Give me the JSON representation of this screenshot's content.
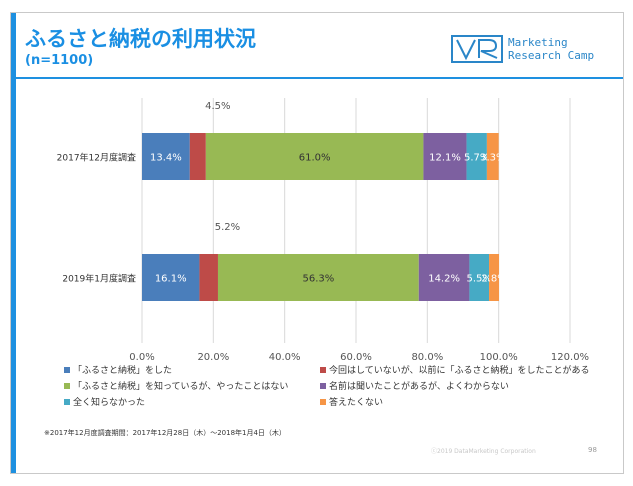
{
  "header": {
    "title": "ふるさと納税の利用状況",
    "subtitle": "(n=1100)"
  },
  "logo": {
    "mark": "VR",
    "line1": "Marketing",
    "line2": "Research Camp"
  },
  "chart_data": {
    "type": "bar",
    "orientation": "horizontal",
    "stacked": true,
    "categories": [
      "2017年12月度調査",
      "2019年1月度調査"
    ],
    "series": [
      {
        "name": "「ふるさと納税」をした",
        "color": "#4a7ebb",
        "values": [
          13.4,
          16.1
        ],
        "labels": [
          "13.4%",
          "16.1%"
        ]
      },
      {
        "name": "今回はしていないが、以前に「ふるさと納税」をしたことがある",
        "color": "#be4b48",
        "values": [
          4.5,
          5.2
        ],
        "labels": [
          "4.5%",
          "5.2%"
        ]
      },
      {
        "name": "「ふるさと納税」を知っているが、やったことはない",
        "color": "#98b954",
        "values": [
          61.0,
          56.3
        ],
        "labels": [
          "61.0%",
          "56.3%"
        ]
      },
      {
        "name": "名前は聞いたことがあるが、よくわからない",
        "color": "#7d60a0",
        "values": [
          12.1,
          14.2
        ],
        "labels": [
          "12.1%",
          "14.2%"
        ]
      },
      {
        "name": "全く知らなかった",
        "color": "#46aac5",
        "values": [
          5.7,
          5.5
        ],
        "labels": [
          "5.7%",
          "5.5%"
        ]
      },
      {
        "name": "答えたくない",
        "color": "#f69546",
        "values": [
          3.3,
          2.8
        ],
        "labels": [
          "3.3%",
          "2.8%"
        ]
      }
    ],
    "xlim": [
      0,
      120
    ],
    "xticks": [
      0,
      20,
      40,
      60,
      80,
      100,
      120
    ],
    "xtick_labels": [
      "0.0%",
      "20.0%",
      "40.0%",
      "60.0%",
      "80.0%",
      "100.0%",
      "120.0%"
    ],
    "grid": true,
    "legend_position": "bottom"
  },
  "footer": {
    "note": "※2017年12月度調査期間：2017年12月28日（木）～2018年1月4日（木）",
    "copyright": "ⓒ2019 DataMarketing Corporation",
    "page": "98"
  }
}
